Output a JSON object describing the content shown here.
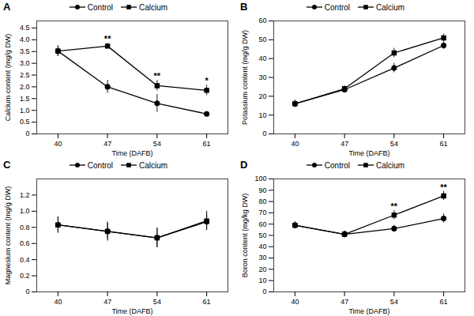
{
  "chart_data": [
    {
      "type": "line",
      "title": "A",
      "xlabel": "Time (DAFB)",
      "ylabel": "Calcium content (mg/g DW)",
      "x": [
        40,
        47,
        54,
        61
      ],
      "xlim": [
        37,
        64
      ],
      "xticks": [
        40,
        47,
        54,
        61
      ],
      "ylim": [
        0,
        4.8
      ],
      "yticks": [
        0,
        0.5,
        {
          "value": 1.0,
          "label": "1.0"
        },
        1.5,
        {
          "value": 2.0,
          "label": "2.0"
        },
        2.5,
        {
          "value": 3.0,
          "label": "3.0"
        },
        3.5,
        {
          "value": 4.0,
          "label": "4.0"
        },
        4.5
      ],
      "grid": false,
      "legend": "top",
      "series": [
        {
          "name": "Control",
          "color": "#000000",
          "marker": "circle",
          "values": [
            3.52,
            2.0,
            1.3,
            0.85
          ],
          "errors": [
            0.22,
            0.28,
            0.38,
            0.1
          ]
        },
        {
          "name": "Calcium",
          "color": "#000000",
          "marker": "square",
          "values": [
            3.52,
            3.73,
            2.05,
            1.85
          ],
          "errors": [
            0.22,
            0.12,
            0.22,
            0.22
          ]
        }
      ],
      "annotations": [
        {
          "x": 47,
          "y": 3.92,
          "text": "**"
        },
        {
          "x": 54,
          "y": 2.32,
          "text": "**"
        },
        {
          "x": 61,
          "y": 2.12,
          "text": "*"
        }
      ]
    },
    {
      "type": "line",
      "title": "B",
      "xlabel": "Time (DAFB)",
      "ylabel": "Potassium content (mg/g DW)",
      "x": [
        40,
        47,
        54,
        61
      ],
      "xlim": [
        37,
        64
      ],
      "xticks": [
        40,
        47,
        54,
        61
      ],
      "ylim": [
        0,
        60
      ],
      "yticks": [
        0,
        10,
        20,
        30,
        40,
        50,
        60
      ],
      "grid": false,
      "legend": "top",
      "series": [
        {
          "name": "Control",
          "color": "#000000",
          "marker": "circle",
          "values": [
            16,
            23.5,
            35,
            47
          ],
          "errors": [
            2.0,
            1.5,
            2.5,
            2.0
          ]
        },
        {
          "name": "Calcium",
          "color": "#000000",
          "marker": "square",
          "values": [
            16,
            24,
            43,
            51
          ],
          "errors": [
            1.5,
            1.5,
            2.5,
            2.0
          ]
        }
      ]
    },
    {
      "type": "line",
      "title": "C",
      "xlabel": "Time (DAFB)",
      "ylabel": "Magnesium content (mg/g DW)",
      "x": [
        40,
        47,
        54,
        61
      ],
      "xlim": [
        37,
        64
      ],
      "xticks": [
        40,
        47,
        54,
        61
      ],
      "ylim": [
        0,
        1.4
      ],
      "yticks": [
        0,
        0.2,
        0.4,
        0.6,
        0.8,
        {
          "value": 1.0,
          "label": "1.0"
        },
        1.2
      ],
      "grid": false,
      "legend": "top",
      "series": [
        {
          "name": "Control",
          "color": "#000000",
          "marker": "circle",
          "values": [
            0.83,
            0.75,
            0.67,
            0.87
          ],
          "errors": [
            0.1,
            0.12,
            0.12,
            0.1
          ]
        },
        {
          "name": "Calcium",
          "color": "#000000",
          "marker": "square",
          "values": [
            0.83,
            0.75,
            0.67,
            0.88
          ],
          "errors": [
            0.1,
            0.1,
            0.12,
            0.12
          ]
        }
      ]
    },
    {
      "type": "line",
      "title": "D",
      "xlabel": "Time (DAFB)",
      "ylabel": "Boron content (mg/kg DW)",
      "x": [
        40,
        47,
        54,
        61
      ],
      "xlim": [
        37,
        64
      ],
      "xticks": [
        40,
        47,
        54,
        61
      ],
      "ylim": [
        0,
        100
      ],
      "yticks": [
        0,
        10,
        20,
        30,
        40,
        50,
        60,
        70,
        80,
        90,
        100
      ],
      "grid": false,
      "legend": "top",
      "series": [
        {
          "name": "Control",
          "color": "#000000",
          "marker": "circle",
          "values": [
            59,
            51,
            56,
            65
          ],
          "errors": [
            3,
            3,
            3,
            4
          ]
        },
        {
          "name": "Calcium",
          "color": "#000000",
          "marker": "square",
          "values": [
            59,
            51,
            68,
            85
          ],
          "errors": [
            3,
            3,
            4,
            4
          ]
        }
      ],
      "annotations": [
        {
          "x": 54,
          "y": 73,
          "text": "**"
        },
        {
          "x": 61,
          "y": 90,
          "text": "**"
        }
      ]
    }
  ]
}
